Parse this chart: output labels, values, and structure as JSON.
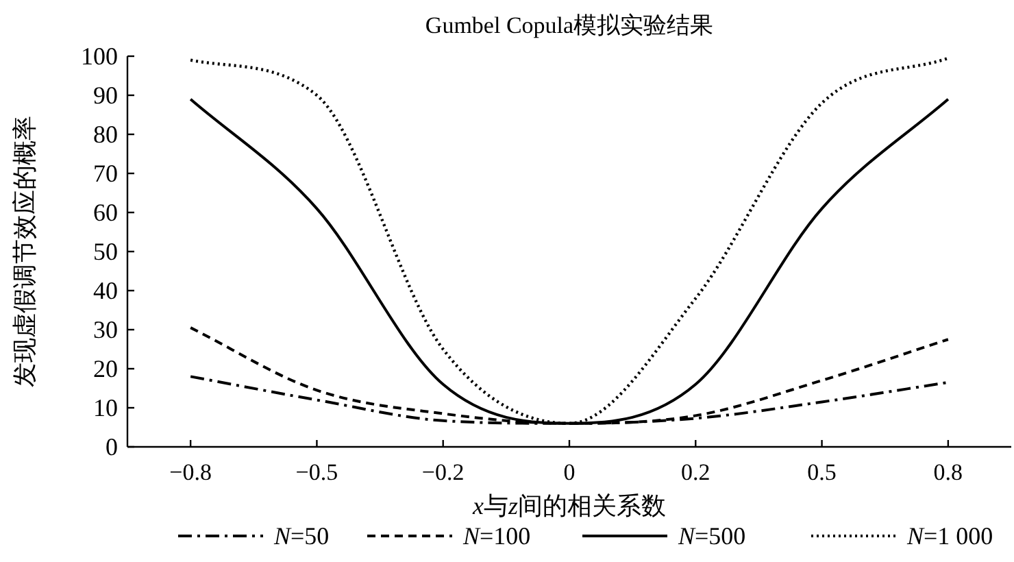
{
  "chart_data": {
    "type": "line",
    "title": "Gumbel Copula模拟实验结果",
    "xlabel": "x与z间的相关系数",
    "ylabel": "发现虚假调节效应的概率",
    "categories": [
      "−0.8",
      "−0.5",
      "−0.2",
      "0",
      "0.2",
      "0.5",
      "0.8"
    ],
    "ylim": [
      0,
      100
    ],
    "yticks": [
      0,
      10,
      20,
      30,
      40,
      50,
      60,
      70,
      80,
      90,
      100
    ],
    "grid": false,
    "legend": "bottom",
    "marker": "none",
    "series": [
      {
        "name": "N=50",
        "color": "#000000",
        "line_style": "dashdot",
        "values": [
          18,
          12,
          6.7,
          6,
          7.3,
          11.5,
          16.5
        ]
      },
      {
        "name": "N=100",
        "color": "#000000",
        "line_style": "dashed",
        "values": [
          30.5,
          14.5,
          8.5,
          6,
          8,
          17,
          27.5
        ]
      },
      {
        "name": "N=500",
        "color": "#000000",
        "line_style": "solid",
        "values": [
          89,
          61,
          16,
          6,
          16,
          61,
          89
        ]
      },
      {
        "name": "N=1 000",
        "color": "#000000",
        "line_style": "dotted",
        "values": [
          99,
          90,
          25,
          6,
          38,
          88,
          99.5
        ]
      }
    ]
  }
}
